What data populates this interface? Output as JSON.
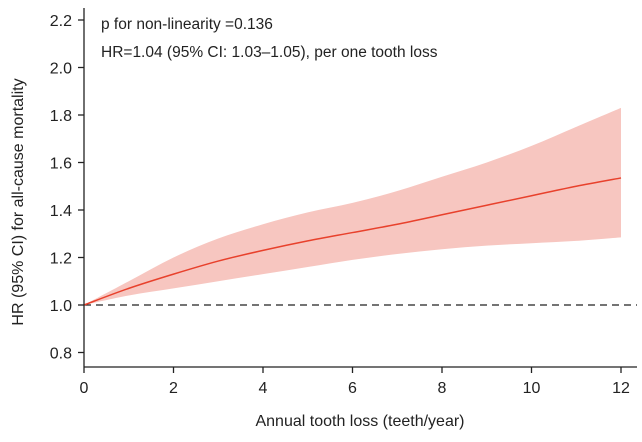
{
  "chart_data": {
    "type": "line",
    "title": "",
    "xlabel": "Annual tooth loss (teeth/year)",
    "ylabel": "HR (95% CI) for all-cause mortality",
    "xlim": [
      0,
      12.4
    ],
    "ylim": [
      0.75,
      2.25
    ],
    "xticks": [
      0,
      2,
      4,
      6,
      8,
      10,
      12
    ],
    "xtick_labels": [
      "0",
      "2",
      "4",
      "6",
      "8",
      "10",
      "12"
    ],
    "yticks": [
      0.8,
      1.0,
      1.2,
      1.4,
      1.6,
      1.8,
      2.0,
      2.2
    ],
    "ytick_labels": [
      "0.8",
      "1.0",
      "1.2",
      "1.4",
      "1.6",
      "1.8",
      "2.0",
      "2.2"
    ],
    "grid": false,
    "annotations": [
      "p for non-linearity =0.136",
      "HR=1.04 (95% CI: 1.03–1.05), per one tooth loss"
    ],
    "reference_line": {
      "y": 1.0,
      "style": "dashed",
      "color": "#222222"
    },
    "x": [
      0,
      1,
      2,
      3,
      4,
      5,
      6,
      7,
      8,
      9,
      10,
      11,
      12
    ],
    "series": [
      {
        "values": [
          1.0,
          1.07,
          1.13,
          1.185,
          1.23,
          1.27,
          1.305,
          1.34,
          1.38,
          1.42,
          1.46,
          1.5,
          1.535
        ],
        "color": "#e8412c"
      }
    ],
    "ci_upper": [
      1.0,
      1.1,
      1.2,
      1.28,
      1.34,
      1.39,
      1.43,
      1.48,
      1.54,
      1.6,
      1.67,
      1.75,
      1.83
    ],
    "ci_lower": [
      1.0,
      1.04,
      1.07,
      1.1,
      1.13,
      1.16,
      1.19,
      1.215,
      1.235,
      1.25,
      1.26,
      1.27,
      1.285
    ],
    "ci_color": "#f7c6c0"
  }
}
